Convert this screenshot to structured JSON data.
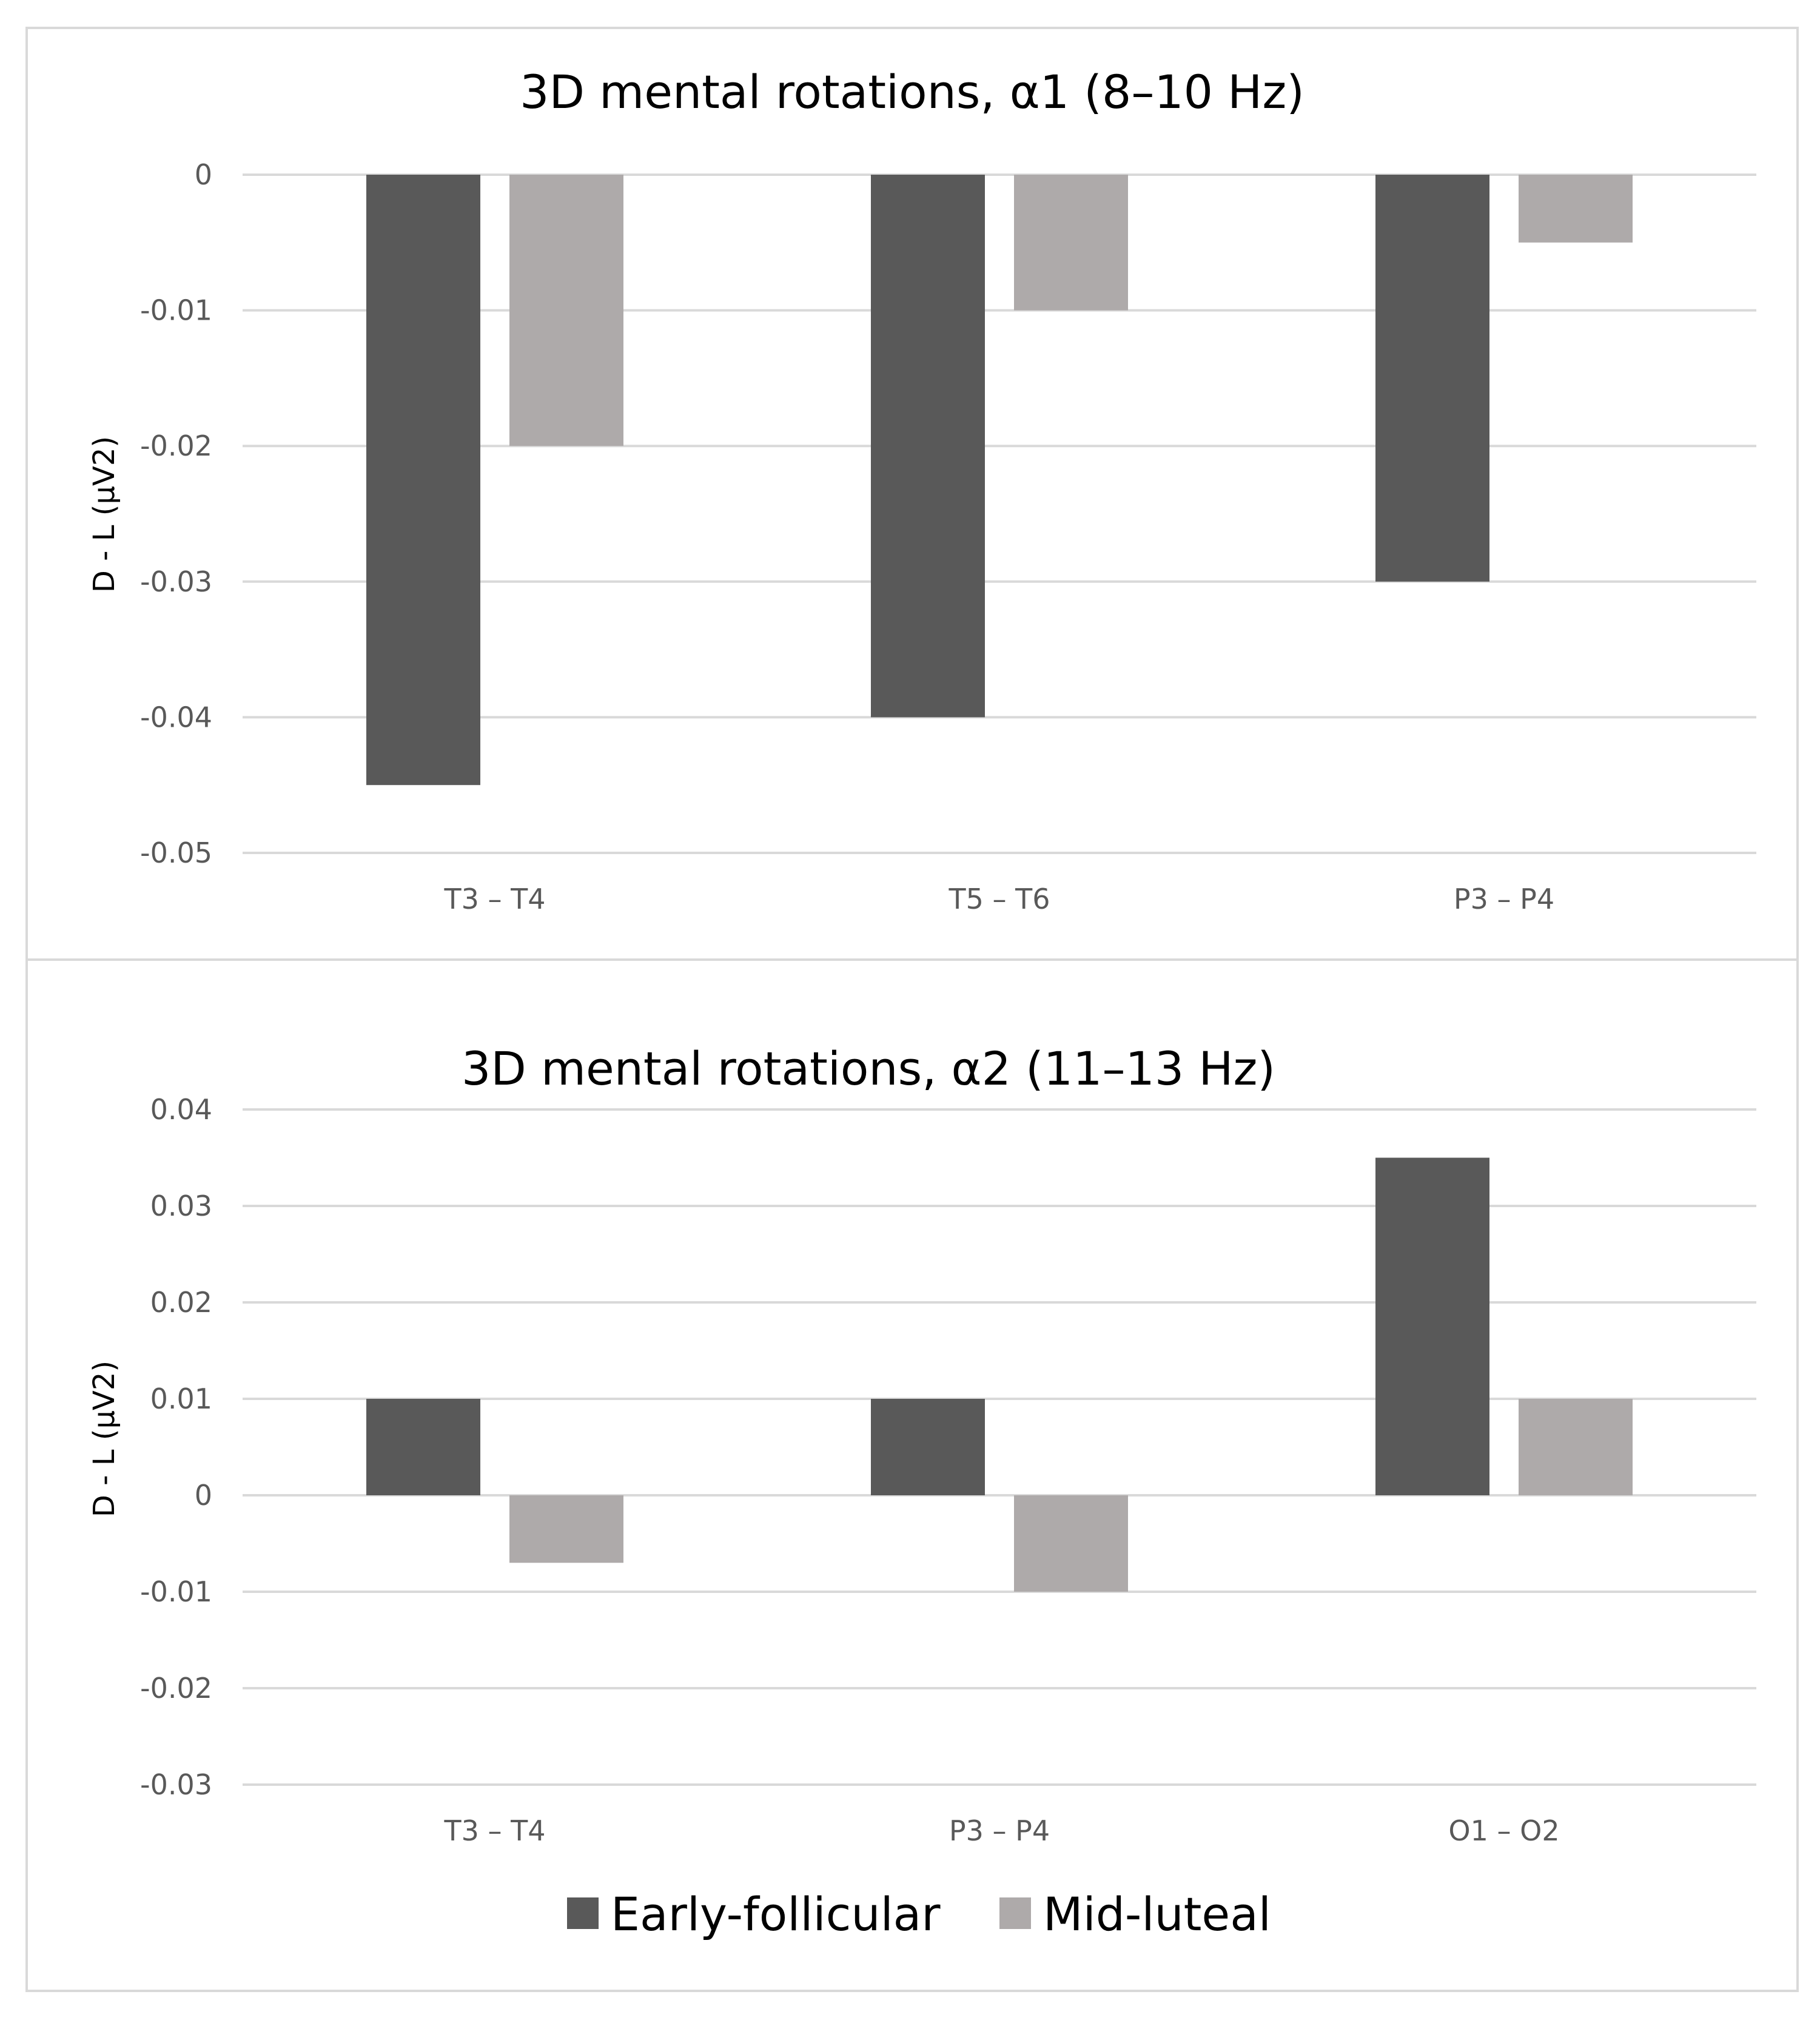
{
  "chart_data": [
    {
      "type": "bar",
      "title": "3D mental rotations, α1 (8–10 Hz)",
      "ylabel": "D - L (µV2)",
      "xlabel": "",
      "categories": [
        "T3 – T4",
        "T5 – T6",
        "P3 – P4"
      ],
      "ylim": [
        -0.05,
        0
      ],
      "yticks": [
        0,
        -0.01,
        -0.02,
        -0.03,
        -0.04,
        -0.05
      ],
      "ytick_labels": [
        "0",
        "-0.01",
        "-0.02",
        "-0.03",
        "-0.04",
        "-0.05"
      ],
      "grid": true,
      "series": [
        {
          "name": "Early-follicular",
          "color": "#595959",
          "values": [
            -0.045,
            -0.04,
            -0.03
          ]
        },
        {
          "name": "Mid-luteal",
          "color": "#aeaaaa",
          "values": [
            -0.02,
            -0.01,
            -0.005
          ]
        }
      ]
    },
    {
      "type": "bar",
      "title": "3D mental rotations, α2 (11–13 Hz)",
      "ylabel": "D - L (µV2)",
      "xlabel": "",
      "categories": [
        "T3 – T4",
        "P3 – P4",
        "O1 – O2"
      ],
      "ylim": [
        -0.03,
        0.04
      ],
      "yticks": [
        0.04,
        0.03,
        0.02,
        0.01,
        0,
        -0.01,
        -0.02,
        -0.03
      ],
      "ytick_labels": [
        "0.04",
        "0.03",
        "0.02",
        "0.01",
        "0",
        "-0.01",
        "-0.02",
        "-0.03"
      ],
      "grid": true,
      "series": [
        {
          "name": "Early-follicular",
          "color": "#595959",
          "values": [
            0.01,
            0.01,
            0.035
          ]
        },
        {
          "name": "Mid-luteal",
          "color": "#aeaaaa",
          "values": [
            -0.007,
            -0.01,
            0.01
          ]
        }
      ]
    }
  ],
  "legend": {
    "placement": "bottom-center",
    "items": [
      {
        "label": "Early-follicular",
        "color": "#595959"
      },
      {
        "label": "Mid-luteal",
        "color": "#aeaaaa"
      }
    ]
  }
}
